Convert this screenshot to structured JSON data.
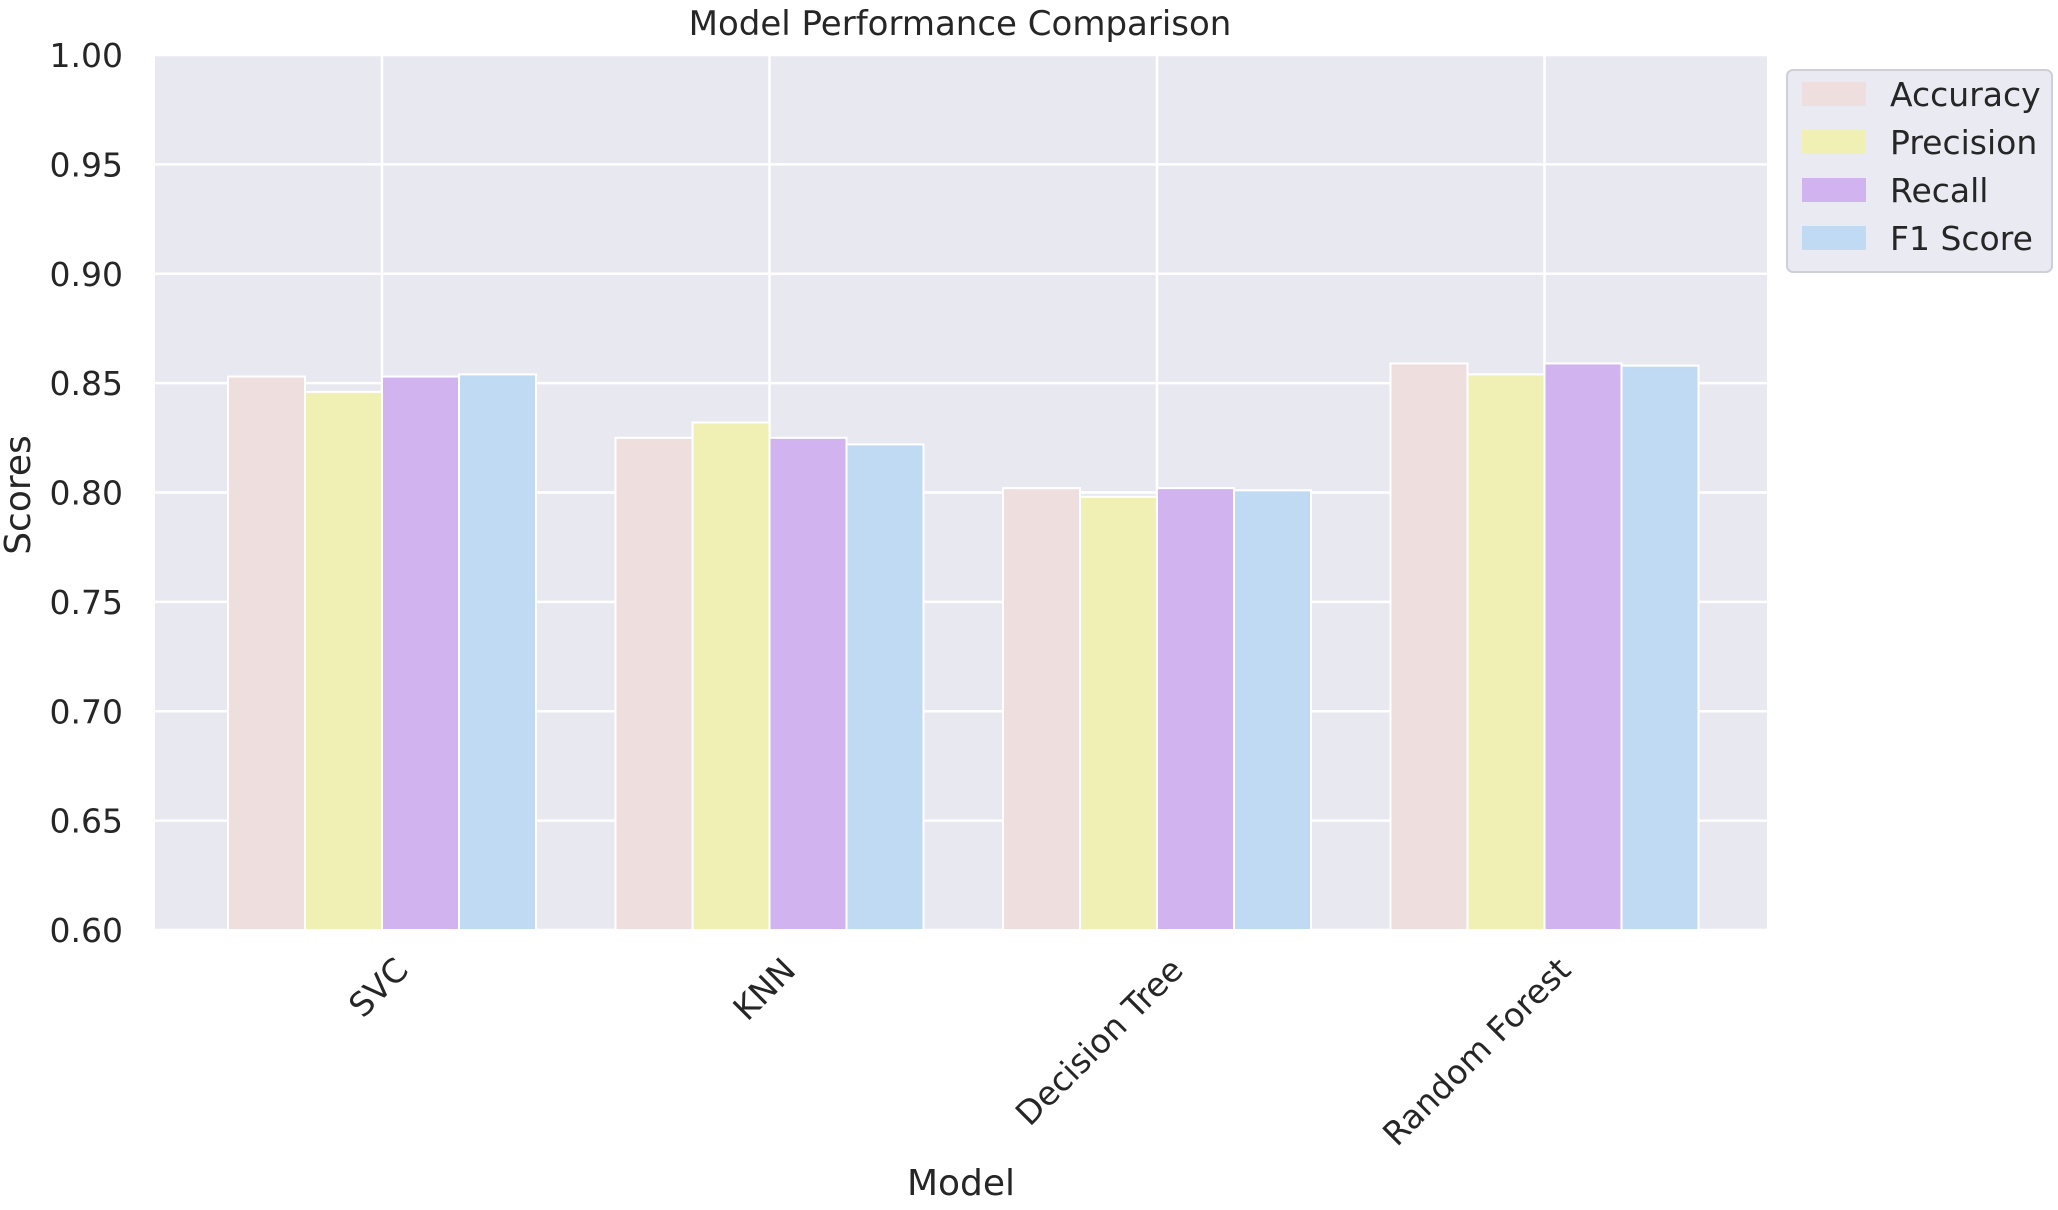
{
  "chart_data": {
    "type": "bar",
    "title": "Model Performance Comparison",
    "xlabel": "Model",
    "ylabel": "Scores",
    "categories": [
      "SVC",
      "KNN",
      "Decision Tree",
      "Random Forest"
    ],
    "series": [
      {
        "name": "Accuracy",
        "color": "#eedede",
        "values": [
          0.853,
          0.825,
          0.802,
          0.859
        ]
      },
      {
        "name": "Precision",
        "color": "#f0efb4",
        "values": [
          0.846,
          0.832,
          0.798,
          0.854
        ]
      },
      {
        "name": "Recall",
        "color": "#d1b4ef",
        "values": [
          0.853,
          0.825,
          0.802,
          0.859
        ]
      },
      {
        "name": "F1 Score",
        "color": "#c1daf3",
        "values": [
          0.854,
          0.822,
          0.801,
          0.858
        ]
      }
    ],
    "ylim": [
      0.6,
      1.0
    ],
    "yticks": [
      "0.60",
      "0.65",
      "0.70",
      "0.75",
      "0.80",
      "0.85",
      "0.90",
      "0.95",
      "1.00"
    ],
    "grid": true,
    "legend_position": "upper-right-outside",
    "colors": {
      "plot_background": "#e8e8f0",
      "grid": "#ffffff",
      "text": "#262626"
    }
  }
}
